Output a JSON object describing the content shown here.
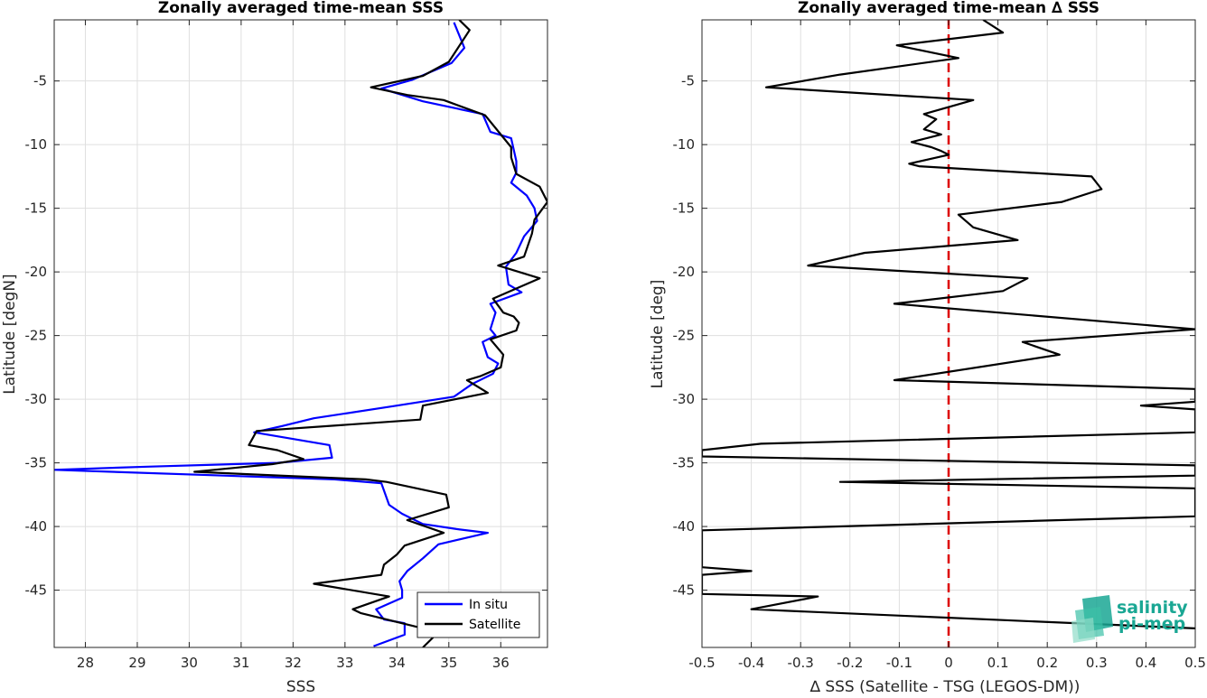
{
  "chart_data": [
    {
      "type": "line",
      "title": "Zonally averaged time-mean SSS",
      "xlabel": "SSS",
      "ylabel": "Latitude [degN]",
      "xlim": [
        27.4,
        36.9
      ],
      "ylim": [
        -49.5,
        -0.2
      ],
      "xticks": [
        28,
        29,
        30,
        31,
        32,
        33,
        34,
        35,
        36
      ],
      "yticks": [
        -5,
        -10,
        -15,
        -20,
        -25,
        -30,
        -35,
        -40,
        -45
      ],
      "grid": true,
      "legend_position": "bottom-right",
      "legend": [
        "In situ",
        "Satellite"
      ],
      "series": [
        {
          "name": "In situ",
          "color": "#0000ff",
          "points": [
            [
              35.1,
              -0.4
            ],
            [
              35.3,
              -2.4
            ],
            [
              35.05,
              -3.6
            ],
            [
              34.3,
              -4.9
            ],
            [
              33.7,
              -5.6
            ],
            [
              34.5,
              -6.6
            ],
            [
              35.65,
              -7.6
            ],
            [
              35.8,
              -9.0
            ],
            [
              36.2,
              -9.5
            ],
            [
              36.3,
              -11.3
            ],
            [
              36.3,
              -12.2
            ],
            [
              36.2,
              -13.0
            ],
            [
              36.5,
              -14.0
            ],
            [
              36.65,
              -15.0
            ],
            [
              36.7,
              -16.0
            ],
            [
              36.45,
              -17.2
            ],
            [
              36.3,
              -18.5
            ],
            [
              36.1,
              -19.6
            ],
            [
              36.15,
              -21.0
            ],
            [
              36.4,
              -21.6
            ],
            [
              35.8,
              -22.5
            ],
            [
              35.9,
              -23.2
            ],
            [
              35.8,
              -24.5
            ],
            [
              35.9,
              -25.0
            ],
            [
              35.65,
              -25.5
            ],
            [
              35.75,
              -26.7
            ],
            [
              35.95,
              -27.2
            ],
            [
              35.85,
              -28.0
            ],
            [
              35.45,
              -28.8
            ],
            [
              35.1,
              -29.8
            ],
            [
              34.0,
              -30.5
            ],
            [
              32.4,
              -31.5
            ],
            [
              31.8,
              -32.1
            ],
            [
              31.25,
              -32.6
            ],
            [
              32.7,
              -33.6
            ],
            [
              32.75,
              -34.6
            ],
            [
              31.7,
              -35.0
            ],
            [
              29.2,
              -35.3
            ],
            [
              27.4,
              -35.55
            ],
            [
              32.8,
              -36.3
            ],
            [
              33.7,
              -36.6
            ],
            [
              33.85,
              -38.3
            ],
            [
              34.1,
              -39.0
            ],
            [
              34.5,
              -39.8
            ],
            [
              35.15,
              -40.2
            ],
            [
              35.75,
              -40.5
            ],
            [
              34.8,
              -41.4
            ],
            [
              34.5,
              -42.5
            ],
            [
              34.2,
              -43.5
            ],
            [
              34.05,
              -44.3
            ],
            [
              34.1,
              -45.0
            ],
            [
              34.1,
              -45.6
            ],
            [
              33.6,
              -46.5
            ],
            [
              33.75,
              -47.3
            ],
            [
              34.15,
              -47.6
            ],
            [
              34.15,
              -48.5
            ],
            [
              33.55,
              -49.4
            ]
          ]
        },
        {
          "name": "Satellite",
          "color": "#000000",
          "points": [
            [
              35.2,
              -0.2
            ],
            [
              35.4,
              -1.0
            ],
            [
              35.0,
              -3.5
            ],
            [
              34.5,
              -4.6
            ],
            [
              33.5,
              -5.5
            ],
            [
              34.2,
              -6.1
            ],
            [
              34.9,
              -6.5
            ],
            [
              35.7,
              -7.7
            ],
            [
              36.2,
              -10.2
            ],
            [
              36.2,
              -11.0
            ],
            [
              36.3,
              -12.3
            ],
            [
              36.75,
              -13.3
            ],
            [
              36.9,
              -14.5
            ],
            [
              36.65,
              -15.9
            ],
            [
              36.6,
              -17.0
            ],
            [
              36.45,
              -18.8
            ],
            [
              35.95,
              -19.5
            ],
            [
              36.75,
              -20.5
            ],
            [
              36.3,
              -21.3
            ],
            [
              35.85,
              -22.1
            ],
            [
              36.05,
              -23.2
            ],
            [
              36.25,
              -23.5
            ],
            [
              36.35,
              -24.0
            ],
            [
              36.3,
              -24.6
            ],
            [
              35.8,
              -25.3
            ],
            [
              36.05,
              -26.5
            ],
            [
              36.0,
              -27.5
            ],
            [
              35.6,
              -28.2
            ],
            [
              35.35,
              -28.5
            ],
            [
              35.75,
              -29.5
            ],
            [
              34.5,
              -30.5
            ],
            [
              34.45,
              -31.6
            ],
            [
              31.3,
              -32.5
            ],
            [
              31.15,
              -33.6
            ],
            [
              31.7,
              -34.0
            ],
            [
              32.2,
              -34.7
            ],
            [
              31.6,
              -35.1
            ],
            [
              30.1,
              -35.7
            ],
            [
              33.4,
              -36.3
            ],
            [
              33.8,
              -36.5
            ],
            [
              34.95,
              -37.5
            ],
            [
              35.0,
              -38.5
            ],
            [
              34.2,
              -39.5
            ],
            [
              34.9,
              -40.5
            ],
            [
              34.15,
              -41.5
            ],
            [
              34.0,
              -42.2
            ],
            [
              33.75,
              -43.0
            ],
            [
              33.7,
              -43.8
            ],
            [
              32.4,
              -44.5
            ],
            [
              33.85,
              -45.5
            ],
            [
              33.15,
              -46.5
            ],
            [
              33.3,
              -46.8
            ],
            [
              34.0,
              -47.5
            ],
            [
              34.8,
              -48.3
            ],
            [
              34.5,
              -49.5
            ]
          ]
        }
      ]
    },
    {
      "type": "line",
      "title": "Zonally averaged time-mean ∆ SSS",
      "xlabel": "∆ SSS (Satellite - TSG (LEGOS-DM))",
      "ylabel": "Latitude [deg]",
      "xlim": [
        -0.5,
        0.5
      ],
      "ylim": [
        -49.5,
        -0.2
      ],
      "xticks": [
        -0.5,
        -0.4,
        -0.3,
        -0.2,
        -0.1,
        0,
        0.1,
        0.2,
        0.3,
        0.4,
        0.5
      ],
      "yticks": [
        -5,
        -10,
        -15,
        -20,
        -25,
        -30,
        -35,
        -40,
        -45
      ],
      "grid": true,
      "zero_line_color": "#dd0000",
      "series": [
        {
          "name": "",
          "color": "#000000",
          "points": [
            [
              0.07,
              -0.2
            ],
            [
              0.11,
              -1.2
            ],
            [
              -0.105,
              -2.2
            ],
            [
              0.02,
              -3.2
            ],
            [
              -0.22,
              -4.5
            ],
            [
              -0.37,
              -5.5
            ],
            [
              0.05,
              -6.5
            ],
            [
              -0.05,
              -7.6
            ],
            [
              -0.025,
              -8.0
            ],
            [
              -0.05,
              -8.8
            ],
            [
              -0.015,
              -9.2
            ],
            [
              -0.075,
              -9.8
            ],
            [
              -0.035,
              -10.2
            ],
            [
              -0.015,
              -10.5
            ],
            [
              0.0,
              -10.8
            ],
            [
              -0.08,
              -11.5
            ],
            [
              -0.06,
              -11.7
            ],
            [
              0.29,
              -12.5
            ],
            [
              0.31,
              -13.5
            ],
            [
              0.23,
              -14.5
            ],
            [
              0.02,
              -15.5
            ],
            [
              0.05,
              -16.5
            ],
            [
              0.14,
              -17.5
            ],
            [
              -0.17,
              -18.5
            ],
            [
              -0.285,
              -19.5
            ],
            [
              0.16,
              -20.5
            ],
            [
              0.11,
              -21.5
            ],
            [
              -0.11,
              -22.5
            ],
            [
              0.5,
              -24.5
            ],
            [
              0.15,
              -25.5
            ],
            [
              0.225,
              -26.5
            ],
            [
              -0.11,
              -28.5
            ],
            [
              0.5,
              -29.2
            ],
            [
              0.5,
              -30.2
            ],
            [
              0.39,
              -30.5
            ],
            [
              0.5,
              -30.8
            ],
            [
              0.5,
              -32.6
            ],
            [
              -0.38,
              -33.5
            ],
            [
              -0.5,
              -34.0
            ],
            [
              -0.5,
              -34.5
            ],
            [
              0.5,
              -35.2
            ],
            [
              0.5,
              -36.0
            ],
            [
              -0.22,
              -36.5
            ],
            [
              0.5,
              -37.0
            ],
            [
              0.5,
              -39.2
            ],
            [
              -0.5,
              -40.3
            ],
            [
              -0.5,
              -43.2
            ],
            [
              -0.4,
              -43.5
            ],
            [
              -0.5,
              -43.8
            ],
            [
              -0.5,
              -45.3
            ],
            [
              -0.265,
              -45.5
            ],
            [
              -0.4,
              -46.5
            ],
            [
              0.5,
              -48.0
            ]
          ]
        }
      ]
    }
  ],
  "logo": {
    "line1": "salinity",
    "line2": "pi-mep",
    "color": "#1aa794"
  }
}
